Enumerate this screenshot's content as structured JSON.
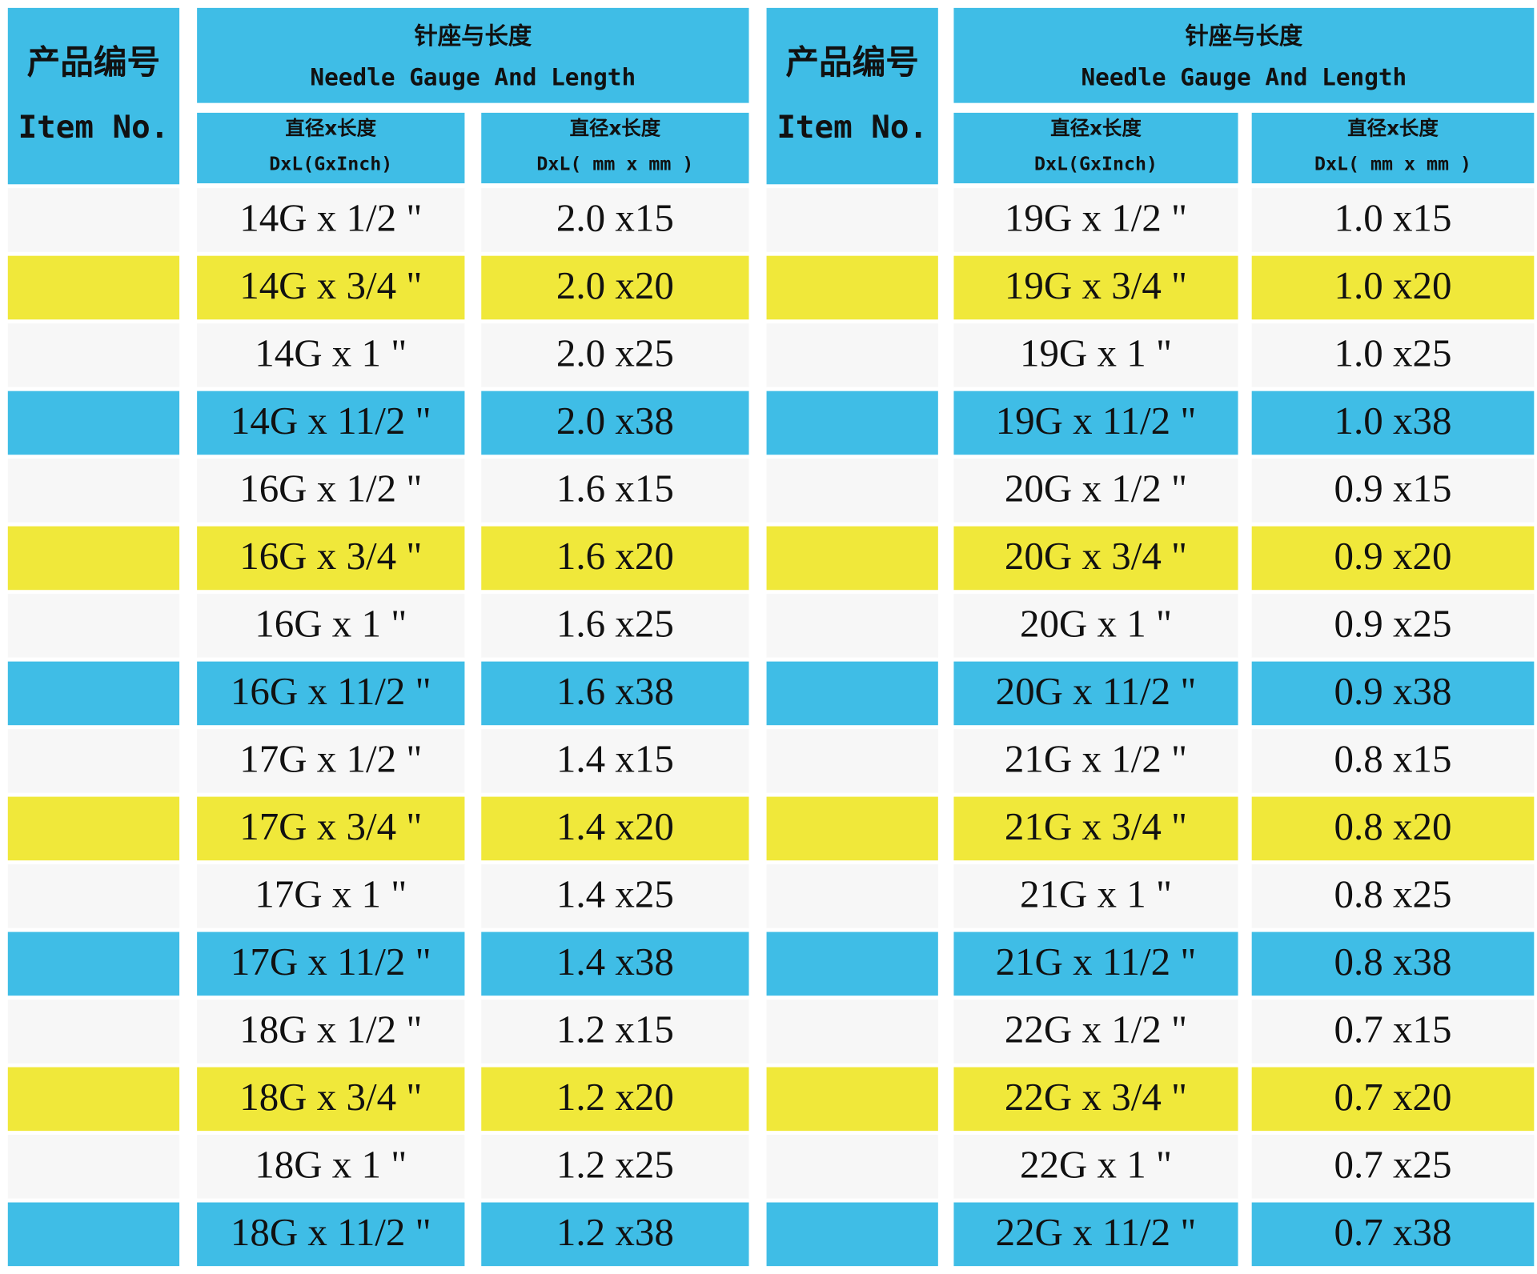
{
  "tables": [
    {
      "header": {
        "item_cn": "产品编号",
        "item_en": "Item No.",
        "needle_cn": "针座与长度",
        "needle_en": "Needle Gauge And Length",
        "col1_cn": "直径x长度",
        "col1_en": "DxL(GxInch)",
        "col2_cn": "直径x长度",
        "col2_en": "DxL( mm x mm )"
      },
      "rows": [
        [
          "14G x 1/2 \"",
          "2.0 x15"
        ],
        [
          "14G x 3/4 \"",
          "2.0 x20"
        ],
        [
          "14G x 1 \"",
          "2.0 x25"
        ],
        [
          "14G x 11/2 \"",
          "2.0 x38"
        ],
        [
          "16G x 1/2 \"",
          "1.6 x15"
        ],
        [
          "16G x 3/4 \"",
          "1.6 x20"
        ],
        [
          "16G x 1 \"",
          "1.6 x25"
        ],
        [
          "16G x 11/2 \"",
          "1.6 x38"
        ],
        [
          "17G x 1/2 \"",
          "1.4 x15"
        ],
        [
          "17G x 3/4 \"",
          "1.4 x20"
        ],
        [
          "17G x 1 \"",
          "1.4 x25"
        ],
        [
          "17G x 11/2 \"",
          "1.4 x38"
        ],
        [
          "18G x 1/2 \"",
          "1.2 x15"
        ],
        [
          "18G x 3/4 \"",
          "1.2 x20"
        ],
        [
          "18G x 1 \"",
          "1.2 x25"
        ],
        [
          "18G x 11/2 \"",
          "1.2 x38"
        ]
      ]
    },
    {
      "header": {
        "item_cn": "产品编号",
        "item_en": "Item No.",
        "needle_cn": "针座与长度",
        "needle_en": "Needle Gauge And Length",
        "col1_cn": "直径x长度",
        "col1_en": "DxL(GxInch)",
        "col2_cn": "直径x长度",
        "col2_en": "DxL( mm x mm )"
      },
      "rows": [
        [
          "19G x 1/2 \"",
          "1.0 x15"
        ],
        [
          "19G x 3/4 \"",
          "1.0 x20"
        ],
        [
          "19G x 1 \"",
          "1.0 x25"
        ],
        [
          "19G x 11/2 \"",
          "1.0 x38"
        ],
        [
          "20G x 1/2 \"",
          "0.9 x15"
        ],
        [
          "20G x 3/4 \"",
          "0.9 x20"
        ],
        [
          "20G x 1 \"",
          "0.9 x25"
        ],
        [
          "20G x 11/2 \"",
          "0.9 x38"
        ],
        [
          "21G x 1/2 \"",
          "0.8 x15"
        ],
        [
          "21G x 3/4 \"",
          "0.8 x20"
        ],
        [
          "21G x 1 \"",
          "0.8 x25"
        ],
        [
          "21G x 11/2 \"",
          "0.8 x38"
        ],
        [
          "22G x 1/2 \"",
          "0.7 x15"
        ],
        [
          "22G x 3/4 \"",
          "0.7 x20"
        ],
        [
          "22G x 1 \"",
          "0.7 x25"
        ],
        [
          "22G x 11/2 \"",
          "0.7 x38"
        ]
      ]
    }
  ]
}
